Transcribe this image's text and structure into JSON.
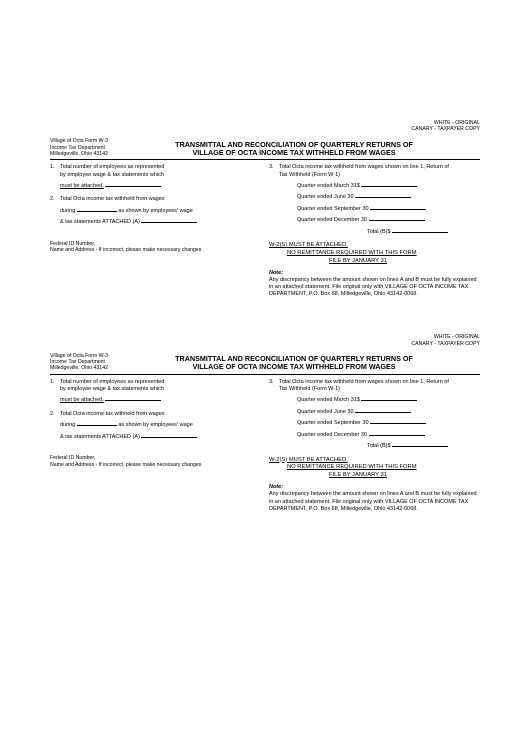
{
  "copy_white": "WHITE - ORIGINAL",
  "copy_canary": "CANARY - TAXPAYER COPY",
  "issuer_l1": "Village of Octa Form W-3",
  "issuer_l2": "Income Tax Department",
  "issuer_l3": "Milledgeville, Ohio 43142",
  "title_l1": "TRANSMITTAL AND RECONCILIATION OF QUARTERLY RETURNS OF",
  "title_l2": "VILLAGE OF OCTA INCOME TAX WITHHELD FROM WAGES",
  "left_item1_num": "1.",
  "left_item1_a": "Total number of employees as represented",
  "left_item1_b": "by employee wage & tax statements which",
  "left_item1_c": "must be attached.",
  "left_item2_num": "2.",
  "left_item2_a": "Total Octa income tax withheld from wages",
  "left_item2_b1": "during",
  "left_item2_b2": "as shown by employees' wage",
  "left_item2_c": "& tax statements ATTACHED (A)",
  "right_item3_num": "3.",
  "right_item3_a": "Total Octa income tax withheld from wages shown on line 1, Return of",
  "right_item3_b": "Tax Withheld (Form W-1)",
  "q1": "Quarter ended March 31$",
  "q2": "Quarter ended June 30",
  "q3": "Quarter ended September 30",
  "q4": "Quarter ended December 30",
  "total_b": "Total (B)$",
  "sec_l1": "W-2(S) MUST BE ATTACHED.",
  "sec_l2": "NO REMITTANCE REQUIRED WITH THIS FORM",
  "sec_l3": "FILE BY JANUARY 31",
  "note_label": "Note:",
  "note_body1": "Any discrepancy between the amount shown on lines A and B must be fully explained in an attached statement. File original only with VILLAGE OF OCTA INCOME TAX DEPARTMENT, P.O. Box 68, Milledgeville, Ohio 43142-0068.",
  "fed_l1": "Federal ID Number,",
  "fed_l2": "Name and Address - If incorrect, please make necessary changes"
}
